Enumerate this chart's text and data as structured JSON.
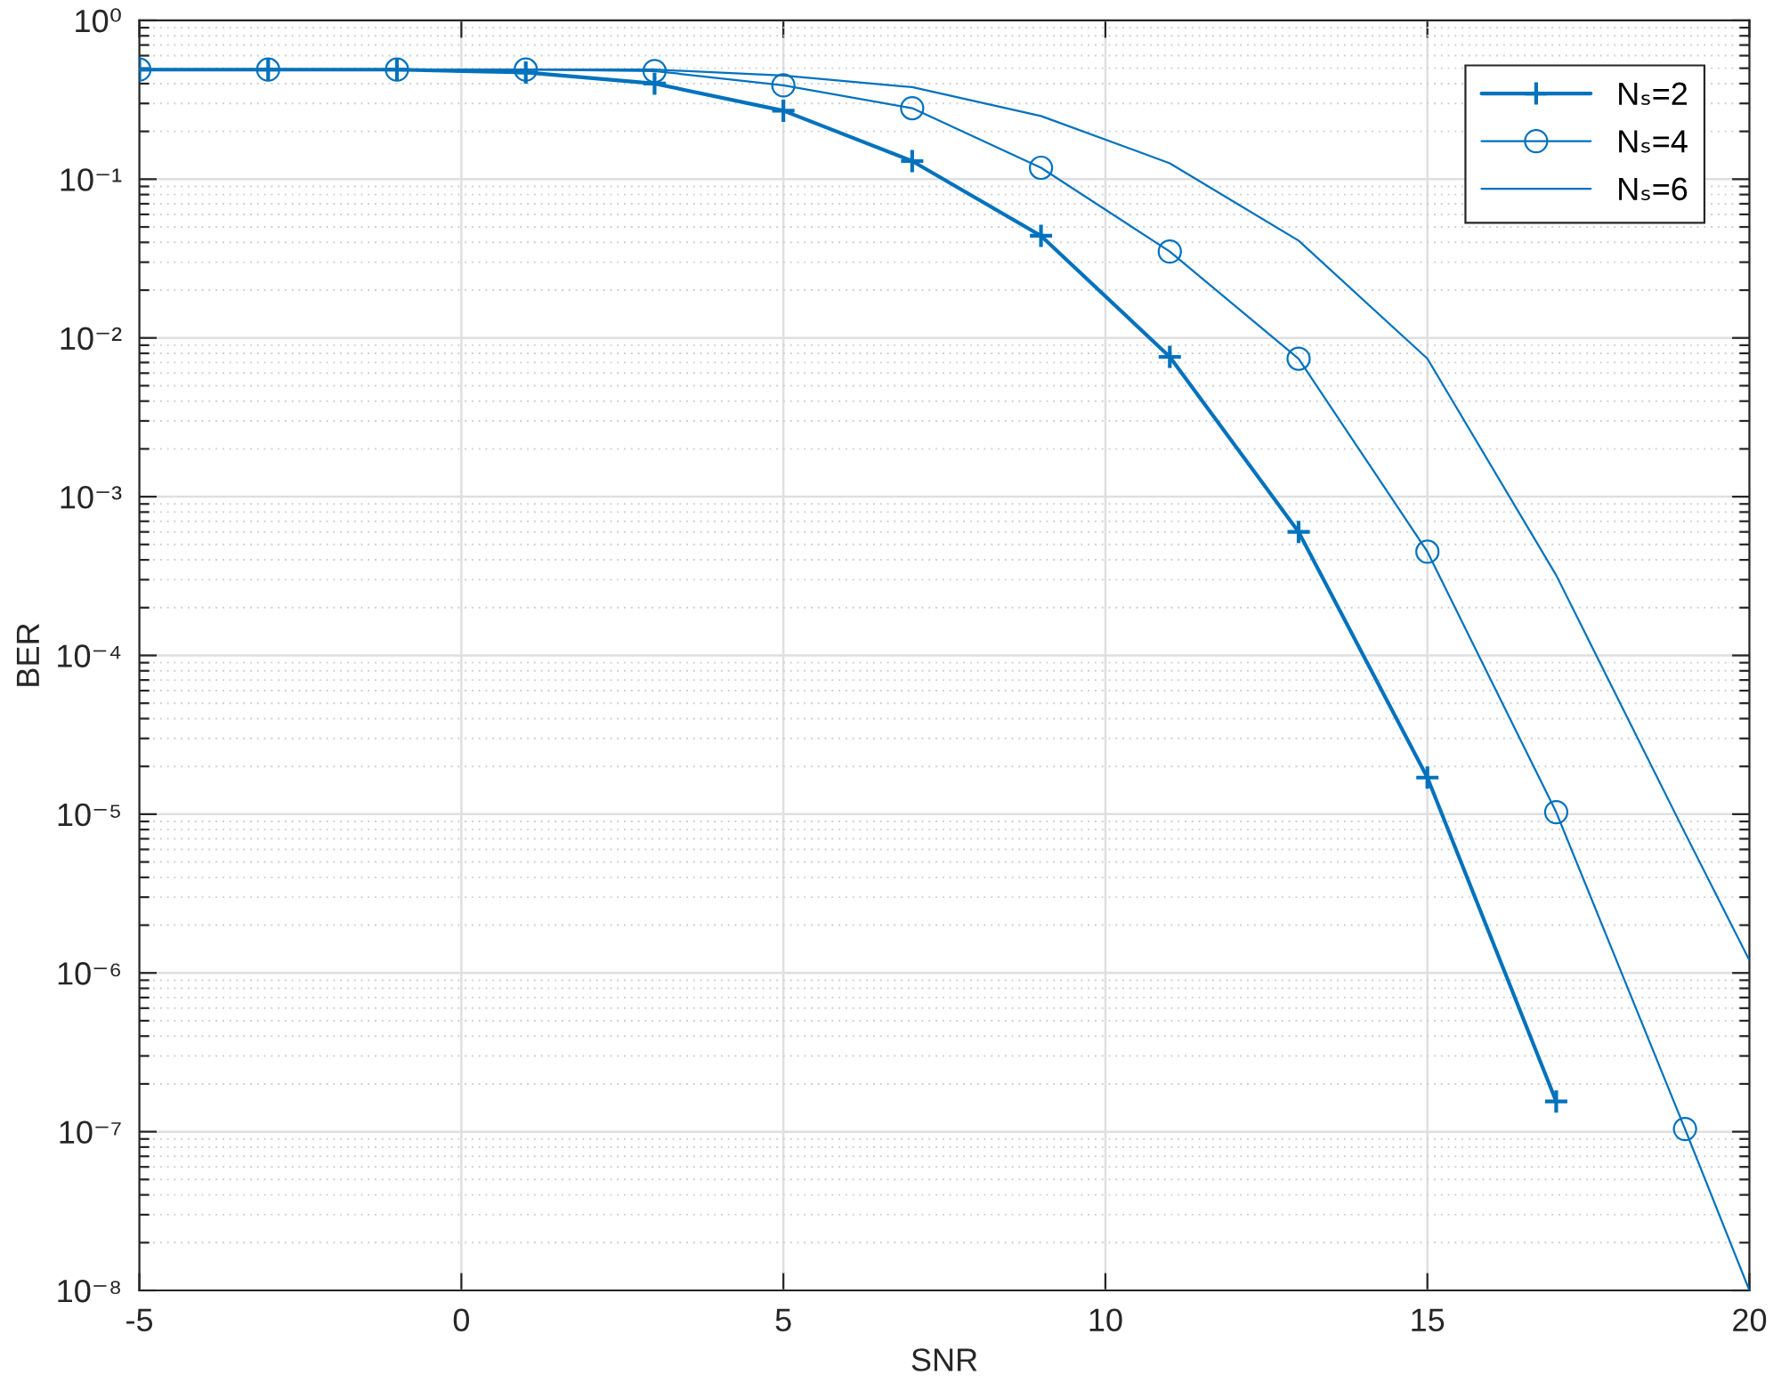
{
  "chart_data": {
    "type": "line",
    "xlabel": "SNR",
    "ylabel": "BER",
    "series": [
      {
        "name": "Nₛ=2",
        "color": "#0072bd",
        "marker": "cross",
        "x": [
          -5,
          -3,
          -1,
          1,
          3,
          5,
          7,
          9,
          11,
          13,
          15,
          17
        ],
        "values": [
          0.49,
          0.49,
          0.49,
          0.47,
          0.4,
          0.27,
          0.13,
          0.044,
          0.0076,
          0.0006,
          1.7e-05,
          1.55e-07
        ]
      },
      {
        "name": "Nₛ=4",
        "color": "#0072bd",
        "marker": "circle",
        "x": [
          -5,
          -3,
          -1,
          1,
          3,
          5,
          7,
          9,
          11,
          13,
          15,
          17,
          19
        ],
        "values": [
          0.49,
          0.49,
          0.49,
          0.49,
          0.48,
          0.39,
          0.28,
          0.118,
          0.035,
          0.0074,
          0.00045,
          1.03e-05,
          1.04e-07
        ]
      },
      {
        "name": "Nₛ=6",
        "color": "#0072bd",
        "marker": "none",
        "x": [
          -5,
          -3,
          -1,
          1,
          3,
          5,
          7,
          9,
          11,
          13,
          15,
          17,
          19,
          20
        ],
        "values": [
          0.49,
          0.49,
          0.49,
          0.49,
          0.49,
          0.45,
          0.38,
          0.25,
          0.126,
          0.041,
          0.0074,
          0.00032,
          7.6e-06,
          1.2e-06
        ]
      },
      {
        "color": "#0072bd",
        "marker": "none",
        "x": [
          19,
          20
        ],
        "values": [
          1.04e-07,
          1e-08
        ]
      }
    ],
    "xlim": [
      -5,
      20
    ],
    "xticks": [
      -5,
      0,
      5,
      10,
      15,
      20
    ],
    "ylim": [
      1e-08,
      1
    ],
    "yticks": [
      {
        "value": 1e-08,
        "label": "10⁻⁸"
      },
      {
        "value": 1e-07,
        "label": "10⁻⁷"
      },
      {
        "value": 1e-06,
        "label": "10⁻⁶"
      },
      {
        "value": 1e-05,
        "label": "10⁻⁵"
      },
      {
        "value": 0.0001,
        "label": "10⁻⁴"
      },
      {
        "value": 0.001,
        "label": "10⁻³"
      },
      {
        "value": 0.01,
        "label": "10⁻²"
      },
      {
        "value": 0.1,
        "label": "10⁻¹"
      },
      {
        "value": 1,
        "label": "10⁰"
      }
    ],
    "log": "y",
    "grid": true,
    "legend": "top right",
    "line_style": "solid"
  }
}
